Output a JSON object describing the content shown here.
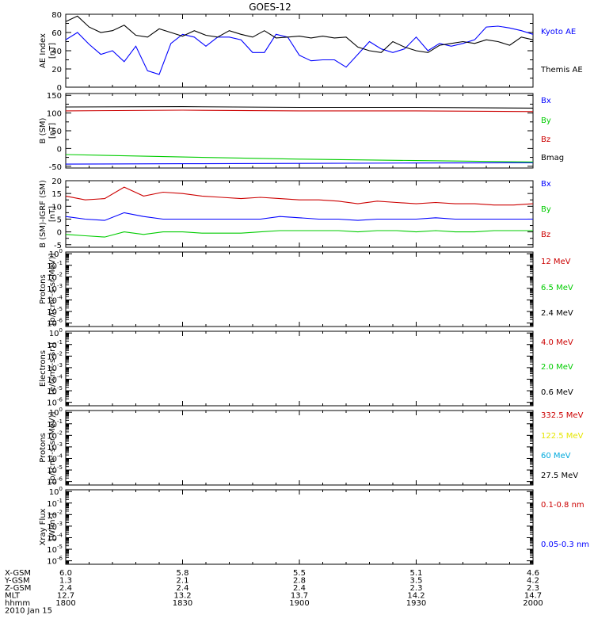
{
  "title": "GOES-12",
  "x_axis": {
    "xlim": [
      1800,
      2000
    ],
    "ticks": [
      1800,
      1830,
      1900,
      1930,
      2000
    ],
    "tick_positions": [
      0,
      30,
      60,
      90,
      120
    ],
    "minor_step": 6
  },
  "ephemeris": {
    "rows": [
      {
        "label": "X-GSM",
        "values": [
          "6.0",
          "5.8",
          "5.5",
          "5.1",
          "4.6"
        ]
      },
      {
        "label": "Y-GSM",
        "values": [
          "1.3",
          "2.1",
          "2.8",
          "3.5",
          "4.2"
        ]
      },
      {
        "label": "Z-GSM",
        "values": [
          "2.4",
          "2.4",
          "2.4",
          "2.3",
          "2.3"
        ]
      },
      {
        "label": "MLT",
        "values": [
          "12.7",
          "13.2",
          "13.7",
          "14.2",
          "14.7"
        ]
      },
      {
        "label": "hhmm",
        "values": [
          "1800",
          "1830",
          "1900",
          "1930",
          "2000"
        ]
      }
    ],
    "date": "2010 Jan 15"
  },
  "chart_data": [
    {
      "type": "line",
      "ylabel": [
        "AE Index",
        "[nT]"
      ],
      "ylim": [
        0,
        80
      ],
      "yticks": [
        0,
        20,
        40,
        60,
        80
      ],
      "x": [
        0,
        3,
        6,
        9,
        12,
        15,
        18,
        21,
        24,
        27,
        30,
        33,
        36,
        39,
        42,
        45,
        48,
        51,
        54,
        57,
        60,
        63,
        66,
        69,
        72,
        75,
        78,
        81,
        84,
        87,
        90,
        93,
        96,
        99,
        102,
        105,
        108,
        111,
        114,
        117,
        120
      ],
      "series": [
        {
          "name": "Kyoto AE",
          "color": "#0000ff",
          "values": [
            52,
            60,
            47,
            36,
            40,
            28,
            45,
            18,
            14,
            48,
            58,
            55,
            45,
            55,
            55,
            52,
            38,
            38,
            58,
            55,
            35,
            29,
            30,
            30,
            22,
            36,
            50,
            42,
            38,
            42,
            55,
            40,
            48,
            45,
            48,
            52,
            66,
            67,
            65,
            62,
            58
          ]
        },
        {
          "name": "Themis AE",
          "color": "#000000",
          "values": [
            72,
            78,
            66,
            60,
            62,
            68,
            57,
            55,
            64,
            60,
            56,
            62,
            57,
            55,
            62,
            58,
            55,
            62,
            54,
            55,
            56,
            54,
            56,
            54,
            55,
            44,
            40,
            38,
            50,
            44,
            40,
            38,
            46,
            48,
            50,
            48,
            52,
            50,
            46,
            55,
            52
          ]
        }
      ]
    },
    {
      "type": "line",
      "ylabel": [
        "B (SM)",
        "[nT]"
      ],
      "ylim": [
        -55,
        155
      ],
      "yticks": [
        -50,
        0,
        50,
        100,
        150
      ],
      "x": [
        0,
        30,
        60,
        90,
        120
      ],
      "series": [
        {
          "name": "Bx",
          "color": "#0000ff",
          "values": [
            -44,
            -43,
            -42,
            -41,
            -40
          ]
        },
        {
          "name": "By",
          "color": "#00cc00",
          "values": [
            -17,
            -24,
            -30,
            -34,
            -38
          ]
        },
        {
          "name": "Bz",
          "color": "#cc0000",
          "values": [
            106,
            108,
            106,
            106,
            104
          ]
        },
        {
          "name": "Bmag",
          "color": "#000000",
          "values": [
            117,
            118,
            116,
            116,
            114
          ]
        }
      ]
    },
    {
      "type": "line",
      "ylabel": [
        "B (SM)-IGRF (SM)",
        "[nT]"
      ],
      "ylim": [
        -6,
        20
      ],
      "yticks": [
        -5,
        0,
        5,
        10,
        15,
        20
      ],
      "x": [
        0,
        5,
        10,
        15,
        20,
        25,
        30,
        35,
        40,
        45,
        50,
        55,
        60,
        65,
        70,
        75,
        80,
        85,
        90,
        95,
        100,
        105,
        110,
        115,
        120
      ],
      "series": [
        {
          "name": "Bx",
          "color": "#0000ff",
          "values": [
            6,
            5,
            4.5,
            7.5,
            6,
            5,
            5,
            5,
            5,
            5,
            5,
            6,
            5.5,
            5,
            5,
            4.5,
            5,
            5,
            5,
            5.5,
            5,
            5,
            5,
            5,
            5
          ]
        },
        {
          "name": "By",
          "color": "#00cc00",
          "values": [
            -1,
            -1.5,
            -2,
            0,
            -1,
            0,
            0,
            -0.5,
            -0.5,
            -0.5,
            0,
            0.5,
            0.5,
            0.5,
            0.5,
            0,
            0.5,
            0.5,
            0,
            0.5,
            0,
            0,
            0.5,
            0.5,
            0.5
          ]
        },
        {
          "name": "Bz",
          "color": "#cc0000",
          "values": [
            14,
            12.5,
            13,
            17.5,
            14,
            15.5,
            15,
            14,
            13.5,
            13,
            13.5,
            13,
            12.5,
            12.5,
            12,
            11,
            12,
            11.5,
            11,
            11.5,
            11,
            11,
            10.5,
            10.5,
            11
          ]
        }
      ]
    },
    {
      "type": "line",
      "ylabel": [
        "Protons",
        "[p/(cm²-s-sr-MeV)]"
      ],
      "yscale": "log",
      "ytick_exponents": [
        0,
        -1,
        -2,
        -3,
        -4,
        -5,
        -6
      ],
      "yrange_exponents": [
        -6.3,
        0.15
      ],
      "series": [
        {
          "name": "12 MeV",
          "color": "#cc0000",
          "values": []
        },
        {
          "name": "6.5 MeV",
          "color": "#00cc00",
          "values": []
        },
        {
          "name": "2.4 MeV",
          "color": "#000000",
          "values": []
        }
      ]
    },
    {
      "type": "line",
      "ylabel": [
        "Electrons",
        "[e/(cm²-s-sr)]"
      ],
      "yscale": "log",
      "ytick_exponents": [
        0,
        -1,
        -2,
        -3,
        -4,
        -5,
        -6
      ],
      "yrange_exponents": [
        -6.3,
        0.15
      ],
      "series": [
        {
          "name": "4.0 MeV",
          "color": "#cc0000",
          "values": []
        },
        {
          "name": "2.0 MeV",
          "color": "#00cc00",
          "values": []
        },
        {
          "name": "0.6 MeV",
          "color": "#000000",
          "values": []
        }
      ]
    },
    {
      "type": "line",
      "ylabel": [
        "Protons",
        "[p/(cm²-s-sr-MeV)]"
      ],
      "yscale": "log",
      "ytick_exponents": [
        0,
        -1,
        -2,
        -3,
        -4,
        -5,
        -6
      ],
      "yrange_exponents": [
        -6.3,
        0.15
      ],
      "series": [
        {
          "name": "332.5 MeV",
          "color": "#cc0000",
          "values": []
        },
        {
          "name": "122.5 MeV",
          "color": "#e6e600",
          "values": []
        },
        {
          "name": "60 MeV",
          "color": "#00aadd",
          "values": []
        },
        {
          "name": "27.5 MeV",
          "color": "#000000",
          "values": []
        }
      ]
    },
    {
      "type": "line",
      "ylabel": [
        "Xray Flux",
        "[W/m²]"
      ],
      "yscale": "log",
      "ytick_exponents": [
        0,
        -1,
        -2,
        -3,
        -4,
        -5,
        -6
      ],
      "yrange_exponents": [
        -6.3,
        0.15
      ],
      "series": [
        {
          "name": "0.1-0.8 nm",
          "color": "#cc0000",
          "values": []
        },
        {
          "name": "0.05-0.3 nm",
          "color": "#0000ff",
          "values": []
        }
      ]
    }
  ]
}
